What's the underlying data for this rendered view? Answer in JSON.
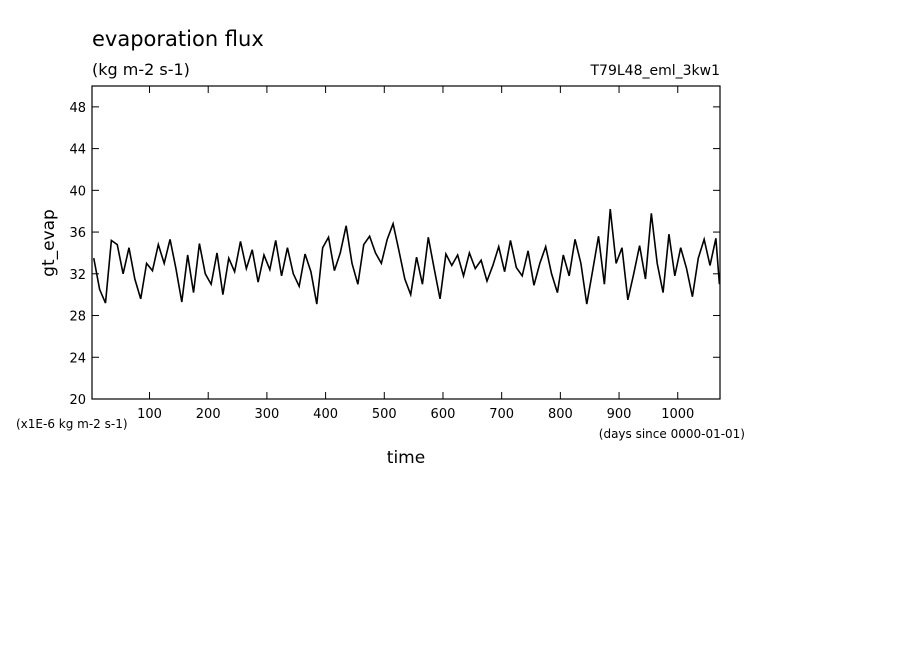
{
  "chart_data": {
    "type": "line",
    "title": "evaporation flux",
    "subtitle": "(kg m-2 s-1)",
    "experiment": "T79L48_eml_3kw1",
    "ylabel": "gt_evap",
    "xlabel": "time",
    "yunits": "(x1E-6 kg m-2 s-1)",
    "xunits": "(days since 0000-01-01)",
    "xlim": [
      2,
      1072
    ],
    "ylim": [
      20,
      50
    ],
    "xticks": [
      100,
      200,
      300,
      400,
      500,
      600,
      700,
      800,
      900,
      1000
    ],
    "yticks": [
      20,
      24,
      28,
      32,
      36,
      40,
      44,
      48
    ],
    "color": "#000000",
    "x": [
      5,
      15,
      25,
      35,
      45,
      55,
      65,
      75,
      85,
      95,
      105,
      115,
      125,
      135,
      145,
      155,
      165,
      175,
      185,
      195,
      205,
      215,
      225,
      235,
      245,
      255,
      265,
      275,
      285,
      295,
      305,
      315,
      325,
      335,
      345,
      355,
      365,
      375,
      385,
      395,
      405,
      415,
      425,
      435,
      445,
      455,
      465,
      475,
      485,
      495,
      505,
      515,
      525,
      535,
      545,
      555,
      565,
      575,
      585,
      595,
      605,
      615,
      625,
      635,
      645,
      655,
      665,
      675,
      685,
      695,
      705,
      715,
      725,
      735,
      745,
      755,
      765,
      775,
      785,
      795,
      805,
      815,
      825,
      835,
      845,
      855,
      865,
      875,
      885,
      895,
      905,
      915,
      925,
      935,
      945,
      955,
      965,
      975,
      985,
      995,
      1005,
      1015,
      1025,
      1035,
      1045,
      1055,
      1065,
      1071
    ],
    "values": [
      33.5,
      30.5,
      29.2,
      35.2,
      34.8,
      32.0,
      34.5,
      31.5,
      29.6,
      33.0,
      32.3,
      34.8,
      33.0,
      35.3,
      32.5,
      29.3,
      33.8,
      30.2,
      34.9,
      32.0,
      31.0,
      34.0,
      30.0,
      33.5,
      32.2,
      35.1,
      32.5,
      34.3,
      31.2,
      33.8,
      32.4,
      35.2,
      31.8,
      34.5,
      32.0,
      30.8,
      33.9,
      32.2,
      29.1,
      34.5,
      35.5,
      32.3,
      34.0,
      36.6,
      33.0,
      31.0,
      34.8,
      35.6,
      34.0,
      33.0,
      35.3,
      36.8,
      34.2,
      31.5,
      30.0,
      33.6,
      31.0,
      35.5,
      32.5,
      29.6,
      33.9,
      32.8,
      33.8,
      31.8,
      34.0,
      32.5,
      33.3,
      31.3,
      32.8,
      34.6,
      32.2,
      35.2,
      32.6,
      31.8,
      34.2,
      30.9,
      33.0,
      34.6,
      32.0,
      30.2,
      33.8,
      31.8,
      35.3,
      33.0,
      29.1,
      32.3,
      35.6,
      31.0,
      38.2,
      33.0,
      34.5,
      29.5,
      32.0,
      34.7,
      31.5,
      37.8,
      33.0,
      30.2,
      35.8,
      31.8,
      34.5,
      32.5,
      29.8,
      33.5,
      35.3,
      32.8,
      35.4,
      31.0
    ]
  }
}
